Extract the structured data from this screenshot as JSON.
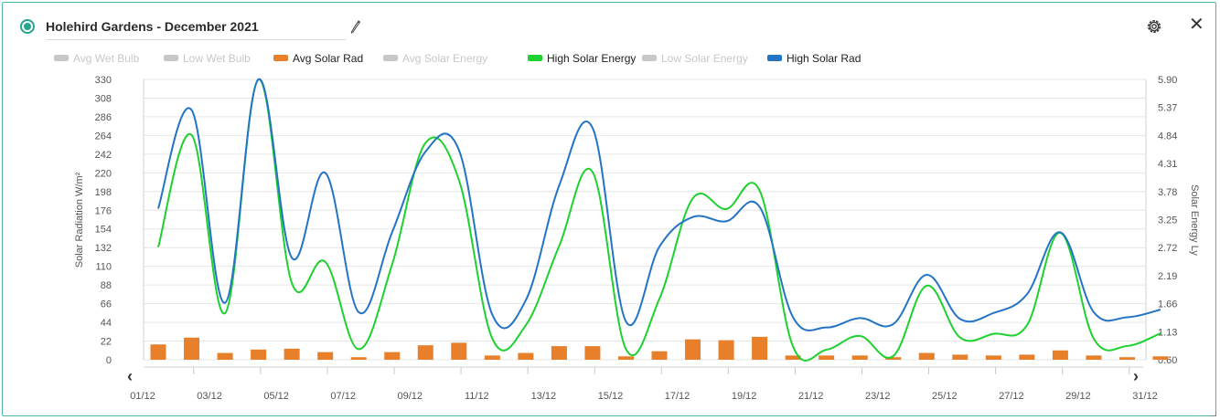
{
  "header": {
    "title": "Holehird Gardens - December 2021"
  },
  "legend": [
    {
      "label": "Avg Wet Bulb",
      "color": "#c8c8c8",
      "active": false
    },
    {
      "label": "Low Wet Bulb",
      "color": "#c8c8c8",
      "active": false
    },
    {
      "label": "Avg Solar Rad",
      "color": "#e87f2a",
      "active": true
    },
    {
      "label": "Avg Solar Energy",
      "color": "#c8c8c8",
      "active": false
    },
    {
      "label": "High Solar Energy",
      "color": "#1dd12e",
      "active": true
    },
    {
      "label": "Low Solar Energy",
      "color": "#c8c8c8",
      "active": false
    },
    {
      "label": "High Solar Rad",
      "color": "#2474c6",
      "active": true
    }
  ],
  "chart_data": {
    "type": "bar+line",
    "x": [
      "01/12",
      "02/12",
      "03/12",
      "04/12",
      "05/12",
      "06/12",
      "07/12",
      "08/12",
      "09/12",
      "10/12",
      "11/12",
      "12/12",
      "13/12",
      "14/12",
      "15/12",
      "16/12",
      "17/12",
      "18/12",
      "19/12",
      "20/12",
      "21/12",
      "22/12",
      "23/12",
      "24/12",
      "25/12",
      "26/12",
      "27/12",
      "28/12",
      "29/12",
      "30/12",
      "31/12"
    ],
    "x_tick_labels": [
      "01/12",
      "03/12",
      "05/12",
      "07/12",
      "09/12",
      "11/12",
      "13/12",
      "15/12",
      "17/12",
      "19/12",
      "21/12",
      "23/12",
      "25/12",
      "27/12",
      "29/12",
      "31/12"
    ],
    "ylabel_left": "Solar Radiation W/m²",
    "ylabel_right": "Solar Energy Ly",
    "y_left_ticks": [
      "330",
      "308",
      "286",
      "264",
      "242",
      "220",
      "198",
      "176",
      "154",
      "132",
      "110",
      "88",
      "66",
      "44",
      "22",
      "0"
    ],
    "y_right_ticks": [
      "5.90",
      "5.37",
      "4.84",
      "4.31",
      "3.78",
      "3.25",
      "2.72",
      "2.19",
      "1.66",
      "1.13",
      "0.60"
    ],
    "ylim_left": [
      0,
      330
    ],
    "ylim_right": [
      0.6,
      5.9
    ],
    "grid": true,
    "series": [
      {
        "name": "Avg Solar Rad",
        "type": "bar",
        "axis": "left",
        "color": "#e87f2a",
        "values": [
          18,
          26,
          8,
          12,
          13,
          9,
          3,
          9,
          17,
          20,
          5,
          8,
          16,
          16,
          4,
          10,
          24,
          23,
          27,
          5,
          5,
          5,
          3,
          8,
          6,
          5,
          6,
          11,
          5,
          3,
          4
        ]
      },
      {
        "name": "High Solar Energy",
        "type": "line",
        "axis": "right",
        "color": "#1dd12e",
        "values": [
          2.73,
          4.85,
          1.48,
          5.9,
          2.05,
          2.45,
          0.8,
          2.4,
          4.7,
          4.0,
          1.0,
          1.25,
          2.75,
          4.15,
          0.8,
          1.75,
          3.65,
          3.45,
          3.8,
          0.85,
          0.79,
          1.05,
          0.67,
          2.0,
          1.02,
          1.09,
          1.25,
          3.0,
          1.0,
          0.86,
          1.1
        ]
      },
      {
        "name": "High Solar Rad",
        "type": "line",
        "axis": "left",
        "color": "#2474c6",
        "values": [
          178,
          294,
          67,
          330,
          120,
          220,
          56,
          150,
          245,
          247,
          53,
          70,
          205,
          273,
          45,
          133,
          168,
          163,
          180,
          50,
          38,
          49,
          42,
          100,
          48,
          55,
          77,
          150,
          56,
          50,
          59
        ]
      }
    ]
  }
}
